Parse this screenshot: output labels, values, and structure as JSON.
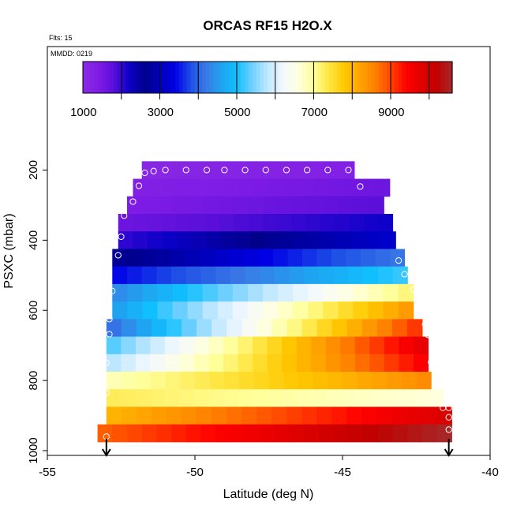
{
  "chart_data": {
    "type": "heatmap",
    "title": "ORCAS RF15 H2O.X",
    "flights_note": "Flts: 15",
    "date_note": "MMDD: 0219",
    "xlabel": "Latitude (deg N)",
    "ylabel": "PSXC (mbar)",
    "xlim": [
      -55,
      -40
    ],
    "ylim": [
      1000,
      100
    ],
    "x_ticks": [
      -55,
      -50,
      -45,
      -40
    ],
    "x_tick_labels": [
      "-55",
      "-50",
      "-45",
      "-40"
    ],
    "y_ticks": [
      200,
      400,
      600,
      800,
      1000
    ],
    "y_tick_labels": [
      "200",
      "400",
      "600",
      "800",
      "1000"
    ],
    "colorbar": {
      "range": [
        0,
        9600
      ],
      "tick_values": [
        1000,
        3000,
        5000,
        7000,
        9000
      ],
      "tick_labels": [
        "1000",
        "3000",
        "5000",
        "7000",
        "9000"
      ],
      "palette": [
        "#8a2be2",
        "#7f1ce6",
        "#5a0fd9",
        "#0c00c8",
        "#00008b",
        "#0000b8",
        "#0000e6",
        "#1e4fe6",
        "#3a7ae6",
        "#1fa3f0",
        "#10c0ff",
        "#70d0ff",
        "#c0e8ff",
        "#f2f8ff",
        "#ffffe0",
        "#ffff99",
        "#ffe540",
        "#ffc800",
        "#ffa500",
        "#ff7f00",
        "#ff4500",
        "#ff0000",
        "#e00000",
        "#c00000",
        "#a52a2a"
      ]
    },
    "levels_mbar": [
      180,
      230,
      280,
      330,
      380,
      430,
      480,
      530,
      580,
      630,
      680,
      730,
      780,
      830,
      880,
      930,
      980
    ],
    "rows": [
      {
        "p": 200,
        "x0": -51.8,
        "x1": -44.6,
        "v0": 100,
        "v1": 300
      },
      {
        "p": 250,
        "x0": -52.1,
        "x1": -43.4,
        "v0": 300,
        "v1": 600
      },
      {
        "p": 300,
        "x0": -52.3,
        "x1": -43.6,
        "v0": 400,
        "v1": 800
      },
      {
        "p": 350,
        "x0": -52.6,
        "x1": -43.3,
        "v0": 600,
        "v1": 1200
      },
      {
        "p": 400,
        "x0": -52.6,
        "x1": -43.2,
        "v0": 1000,
        "v1": 2200
      },
      {
        "p": 450,
        "x0": -52.8,
        "x1": -42.9,
        "v0": 1500,
        "v1": 3200
      },
      {
        "p": 500,
        "x0": -52.8,
        "x1": -42.8,
        "v0": 2400,
        "v1": 4200
      },
      {
        "p": 550,
        "x0": -52.8,
        "x1": -42.6,
        "v0": 3300,
        "v1": 6200
      },
      {
        "p": 600,
        "x0": -52.8,
        "x1": -42.6,
        "v0": 3500,
        "v1": 7400
      },
      {
        "p": 650,
        "x0": -53.0,
        "x1": -42.3,
        "v0": 3000,
        "v1": 8200
      },
      {
        "p": 700,
        "x0": -53.0,
        "x1": -42.1,
        "v0": 4200,
        "v1": 8800
      },
      {
        "p": 750,
        "x0": -53.0,
        "x1": -42.1,
        "v0": 4700,
        "v1": 8500
      },
      {
        "p": 800,
        "x0": -53.0,
        "x1": -42.0,
        "v0": 5800,
        "v1": 7500
      },
      {
        "p": 850,
        "x0": -53.0,
        "x1": -41.6,
        "v0": 6300,
        "v1": 5600
      },
      {
        "p": 900,
        "x0": -53.0,
        "x1": -41.3,
        "v0": 7000,
        "v1": 8900
      },
      {
        "p": 950,
        "x0": -53.3,
        "x1": -41.3,
        "v0": 7800,
        "v1": 9600
      }
    ],
    "flight_track": [
      [
        -53.0,
        960
      ],
      [
        -53.0,
        835
      ],
      [
        -53.0,
        750
      ],
      [
        -52.9,
        668
      ],
      [
        -52.9,
        625
      ],
      [
        -52.8,
        545
      ],
      [
        -52.6,
        443
      ],
      [
        -52.5,
        390
      ],
      [
        -52.4,
        330
      ],
      [
        -52.1,
        290
      ],
      [
        -51.9,
        245
      ],
      [
        -51.7,
        208
      ],
      [
        -51.4,
        203
      ],
      [
        -51.0,
        200
      ],
      [
        -50.3,
        200
      ],
      [
        -49.6,
        200
      ],
      [
        -49.0,
        200
      ],
      [
        -48.3,
        200
      ],
      [
        -47.6,
        200
      ],
      [
        -46.9,
        200
      ],
      [
        -46.2,
        200
      ],
      [
        -45.5,
        200
      ],
      [
        -44.8,
        200
      ],
      [
        -44.4,
        247
      ],
      [
        -43.1,
        363
      ],
      [
        -43.1,
        458
      ],
      [
        -42.9,
        497
      ],
      [
        -42.6,
        540
      ],
      [
        -42.2,
        640
      ],
      [
        -42.1,
        670
      ],
      [
        -42.0,
        748
      ],
      [
        -41.6,
        878
      ],
      [
        -41.4,
        878
      ],
      [
        -41.4,
        905
      ],
      [
        -41.4,
        940
      ]
    ],
    "arrows_x": [
      -53.0,
      -41.4
    ]
  }
}
